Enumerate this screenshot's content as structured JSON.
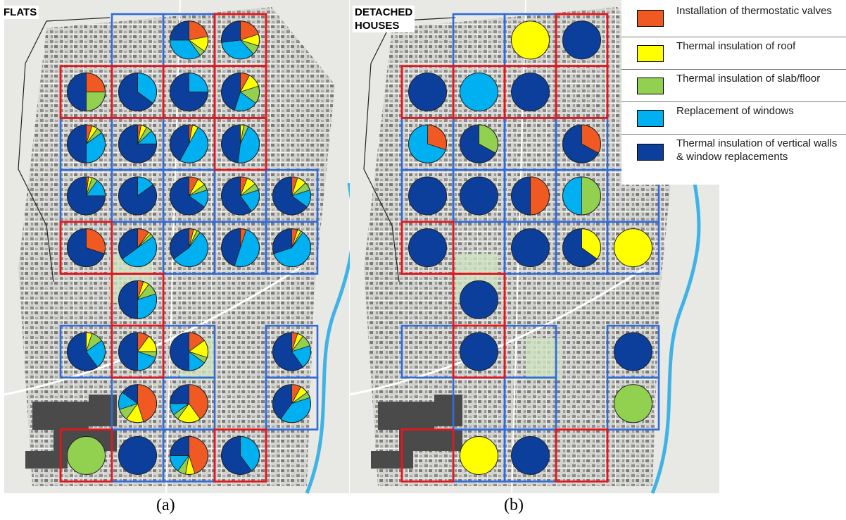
{
  "panels": [
    {
      "id": "a",
      "title_lines": [
        "FLATS"
      ],
      "caption": "(a)"
    },
    {
      "id": "b",
      "title_lines": [
        "DETACHED",
        "HOUSES"
      ],
      "caption": "(b)"
    }
  ],
  "legend": [
    {
      "key": "thermostatic",
      "label": "Installation of thermostatic valves",
      "color": "#f05a22"
    },
    {
      "key": "roof",
      "label": "Thermal insulation of roof",
      "color": "#ffff00"
    },
    {
      "key": "slab",
      "label": "Thermal insulation of slab/floor",
      "color": "#92d050"
    },
    {
      "key": "windows",
      "label": "Replacement of windows",
      "color": "#00b0f0"
    },
    {
      "key": "walls",
      "label": "Thermal insulation of vertical walls & window replacements",
      "color": "#0b3f9b"
    }
  ],
  "cell_border_colors": {
    "red": "#e8141c",
    "blue": "#2f6bdc"
  },
  "map_colors": {
    "background": "#e8e9e5",
    "urban": "#cfcfcc",
    "river": "#3fb2e8",
    "park": "#cfe3c1",
    "industrial": "#4a4a4a"
  },
  "flats_grid": [
    {
      "row": 0,
      "col": 1,
      "border": "blue",
      "shares": null
    },
    {
      "row": 0,
      "col": 2,
      "border": "blue",
      "shares": {
        "thermostatic": 0.22,
        "roof": 0.13,
        "slab": 0.05,
        "windows": 0.35,
        "walls": 0.25
      }
    },
    {
      "row": 0,
      "col": 3,
      "border": "red",
      "shares": {
        "thermostatic": 0.2,
        "roof": 0.1,
        "slab": 0.08,
        "windows": 0.35,
        "walls": 0.27
      }
    },
    {
      "row": 1,
      "col": 0,
      "border": "red",
      "shares": {
        "thermostatic": 0.25,
        "roof": 0.0,
        "slab": 0.25,
        "windows": 0.0,
        "walls": 0.5
      }
    },
    {
      "row": 1,
      "col": 1,
      "border": "red",
      "shares": {
        "thermostatic": 0.0,
        "roof": 0.0,
        "slab": 0.0,
        "windows": 0.35,
        "walls": 0.65
      }
    },
    {
      "row": 1,
      "col": 2,
      "border": "red",
      "shares": {
        "thermostatic": 0.0,
        "roof": 0.0,
        "slab": 0.0,
        "windows": 0.25,
        "walls": 0.75
      }
    },
    {
      "row": 1,
      "col": 3,
      "border": "red",
      "shares": {
        "thermostatic": 0.08,
        "roof": 0.12,
        "slab": 0.15,
        "windows": 0.2,
        "walls": 0.45
      }
    },
    {
      "row": 2,
      "col": 0,
      "border": "blue",
      "shares": {
        "thermostatic": 0.05,
        "roof": 0.05,
        "slab": 0.05,
        "windows": 0.35,
        "walls": 0.5
      }
    },
    {
      "row": 2,
      "col": 1,
      "border": "blue",
      "shares": {
        "thermostatic": 0.03,
        "roof": 0.05,
        "slab": 0.05,
        "windows": 0.12,
        "walls": 0.75
      }
    },
    {
      "row": 2,
      "col": 2,
      "border": "blue",
      "shares": {
        "thermostatic": 0.03,
        "roof": 0.05,
        "slab": 0.0,
        "windows": 0.5,
        "walls": 0.42
      }
    },
    {
      "row": 2,
      "col": 3,
      "border": "red",
      "shares": {
        "thermostatic": 0.0,
        "roof": 0.03,
        "slab": 0.04,
        "windows": 0.45,
        "walls": 0.48
      }
    },
    {
      "row": 3,
      "col": 0,
      "border": "blue",
      "shares": {
        "thermostatic": 0.02,
        "roof": 0.03,
        "slab": 0.05,
        "windows": 0.15,
        "walls": 0.75
      }
    },
    {
      "row": 3,
      "col": 1,
      "border": "blue",
      "shares": {
        "thermostatic": 0.0,
        "roof": 0.0,
        "slab": 0.0,
        "windows": 0.15,
        "walls": 0.85
      }
    },
    {
      "row": 3,
      "col": 2,
      "border": "blue",
      "shares": {
        "thermostatic": 0.08,
        "roof": 0.07,
        "slab": 0.05,
        "windows": 0.15,
        "walls": 0.65
      }
    },
    {
      "row": 3,
      "col": 3,
      "border": "blue",
      "shares": {
        "thermostatic": 0.06,
        "roof": 0.08,
        "slab": 0.06,
        "windows": 0.2,
        "walls": 0.6
      }
    },
    {
      "row": 3,
      "col": 4,
      "border": "blue",
      "shares": {
        "thermostatic": 0.05,
        "roof": 0.08,
        "slab": 0.07,
        "windows": 0.15,
        "walls": 0.65
      }
    },
    {
      "row": 4,
      "col": 0,
      "border": "red",
      "shares": {
        "thermostatic": 0.3,
        "roof": 0.0,
        "slab": 0.0,
        "windows": 0.0,
        "walls": 0.7
      }
    },
    {
      "row": 4,
      "col": 1,
      "border": "blue",
      "shares": {
        "thermostatic": 0.1,
        "roof": 0.02,
        "slab": 0.03,
        "windows": 0.5,
        "walls": 0.35
      }
    },
    {
      "row": 4,
      "col": 2,
      "border": "blue",
      "shares": {
        "thermostatic": 0.04,
        "roof": 0.03,
        "slab": 0.03,
        "windows": 0.55,
        "walls": 0.35
      }
    },
    {
      "row": 4,
      "col": 3,
      "border": "blue",
      "shares": {
        "thermostatic": 0.05,
        "roof": 0.0,
        "slab": 0.0,
        "windows": 0.5,
        "walls": 0.45
      }
    },
    {
      "row": 4,
      "col": 4,
      "border": "blue",
      "shares": {
        "thermostatic": 0.05,
        "roof": 0.03,
        "slab": 0.02,
        "windows": 0.6,
        "walls": 0.3
      }
    },
    {
      "row": 5,
      "col": 1,
      "border": "red",
      "shares": {
        "thermostatic": 0.05,
        "roof": 0.05,
        "slab": 0.1,
        "windows": 0.3,
        "walls": 0.5
      }
    },
    {
      "row": 6,
      "col": 0,
      "border": "blue",
      "shares": {
        "thermostatic": 0.0,
        "roof": 0.05,
        "slab": 0.1,
        "windows": 0.25,
        "walls": 0.6
      }
    },
    {
      "row": 6,
      "col": 1,
      "border": "red",
      "shares": {
        "thermostatic": 0.1,
        "roof": 0.15,
        "slab": 0.05,
        "windows": 0.2,
        "walls": 0.5
      }
    },
    {
      "row": 6,
      "col": 2,
      "border": "blue",
      "shares": {
        "thermostatic": 0.15,
        "roof": 0.15,
        "slab": 0.05,
        "windows": 0.15,
        "walls": 0.5
      }
    },
    {
      "row": 6,
      "col": 4,
      "border": "blue",
      "shares": {
        "thermostatic": 0.05,
        "roof": 0.05,
        "slab": 0.1,
        "windows": 0.2,
        "walls": 0.6
      }
    },
    {
      "row": 7,
      "col": 1,
      "border": "blue",
      "shares": {
        "thermostatic": 0.45,
        "roof": 0.15,
        "slab": 0.1,
        "windows": 0.15,
        "walls": 0.15
      }
    },
    {
      "row": 7,
      "col": 2,
      "border": "blue",
      "shares": {
        "thermostatic": 0.4,
        "roof": 0.2,
        "slab": 0.05,
        "windows": 0.1,
        "walls": 0.25
      }
    },
    {
      "row": 7,
      "col": 4,
      "border": "blue",
      "shares": {
        "thermostatic": 0.08,
        "roof": 0.07,
        "slab": 0.05,
        "windows": 0.4,
        "walls": 0.4
      }
    },
    {
      "row": 8,
      "col": 0,
      "border": "red",
      "shares": {
        "thermostatic": 0.0,
        "roof": 0.0,
        "slab": 1.0,
        "windows": 0.0,
        "walls": 0.0
      }
    },
    {
      "row": 8,
      "col": 1,
      "border": "blue",
      "shares": {
        "thermostatic": 0.0,
        "roof": 0.0,
        "slab": 0.0,
        "windows": 0.0,
        "walls": 1.0
      }
    },
    {
      "row": 8,
      "col": 2,
      "border": "blue",
      "shares": {
        "thermostatic": 0.45,
        "roof": 0.08,
        "slab": 0.07,
        "windows": 0.15,
        "walls": 0.25
      }
    },
    {
      "row": 8,
      "col": 3,
      "border": "red",
      "shares": {
        "thermostatic": 0.0,
        "roof": 0.0,
        "slab": 0.0,
        "windows": 0.4,
        "walls": 0.6
      }
    }
  ],
  "houses_grid": [
    {
      "row": 0,
      "col": 1,
      "border": "blue",
      "shares": null
    },
    {
      "row": 0,
      "col": 2,
      "border": "blue",
      "shares": {
        "roof": 1.0
      }
    },
    {
      "row": 0,
      "col": 3,
      "border": "red",
      "shares": {
        "walls": 1.0
      }
    },
    {
      "row": 1,
      "col": 0,
      "border": "red",
      "shares": {
        "walls": 1.0
      }
    },
    {
      "row": 1,
      "col": 1,
      "border": "red",
      "shares": {
        "windows": 1.0
      }
    },
    {
      "row": 1,
      "col": 2,
      "border": "red",
      "shares": {
        "walls": 1.0
      }
    },
    {
      "row": 1,
      "col": 3,
      "border": "red",
      "shares": null
    },
    {
      "row": 2,
      "col": 0,
      "border": "blue",
      "shares": {
        "thermostatic": 0.3,
        "windows": 0.7
      }
    },
    {
      "row": 2,
      "col": 1,
      "border": "blue",
      "shares": {
        "slab": 0.33,
        "walls": 0.67
      }
    },
    {
      "row": 2,
      "col": 2,
      "border": "blue",
      "shares": null
    },
    {
      "row": 2,
      "col": 3,
      "border": "blue",
      "shares": {
        "thermostatic": 0.33,
        "walls": 0.67
      }
    },
    {
      "row": 3,
      "col": 0,
      "border": "blue",
      "shares": {
        "walls": 1.0
      }
    },
    {
      "row": 3,
      "col": 1,
      "border": "blue",
      "shares": {
        "walls": 1.0
      }
    },
    {
      "row": 3,
      "col": 2,
      "border": "blue",
      "shares": {
        "thermostatic": 0.5,
        "walls": 0.5
      }
    },
    {
      "row": 3,
      "col": 3,
      "border": "blue",
      "shares": {
        "slab": 0.5,
        "windows": 0.5
      }
    },
    {
      "row": 3,
      "col": 4,
      "border": "blue",
      "shares": null
    },
    {
      "row": 4,
      "col": 0,
      "border": "red",
      "shares": {
        "walls": 1.0
      }
    },
    {
      "row": 4,
      "col": 1,
      "border": "blue",
      "shares": null
    },
    {
      "row": 4,
      "col": 2,
      "border": "blue",
      "shares": {
        "walls": 1.0
      }
    },
    {
      "row": 4,
      "col": 3,
      "border": "blue",
      "shares": {
        "roof": 0.35,
        "walls": 0.65
      }
    },
    {
      "row": 4,
      "col": 4,
      "border": "blue",
      "shares": {
        "roof": 1.0
      }
    },
    {
      "row": 5,
      "col": 1,
      "border": "red",
      "shares": {
        "walls": 1.0
      }
    },
    {
      "row": 6,
      "col": 0,
      "border": "blue",
      "shares": null
    },
    {
      "row": 6,
      "col": 1,
      "border": "red",
      "shares": {
        "walls": 1.0
      }
    },
    {
      "row": 6,
      "col": 2,
      "border": "blue",
      "shares": null
    },
    {
      "row": 6,
      "col": 4,
      "border": "blue",
      "shares": {
        "walls": 1.0
      }
    },
    {
      "row": 7,
      "col": 1,
      "border": "blue",
      "shares": null
    },
    {
      "row": 7,
      "col": 2,
      "border": "blue",
      "shares": null
    },
    {
      "row": 7,
      "col": 4,
      "border": "blue",
      "shares": {
        "slab": 1.0
      }
    },
    {
      "row": 8,
      "col": 0,
      "border": "red",
      "shares": null
    },
    {
      "row": 8,
      "col": 1,
      "border": "blue",
      "shares": {
        "roof": 1.0
      }
    },
    {
      "row": 8,
      "col": 2,
      "border": "blue",
      "shares": {
        "walls": 1.0
      }
    },
    {
      "row": 8,
      "col": 3,
      "border": "red",
      "shares": null
    }
  ]
}
